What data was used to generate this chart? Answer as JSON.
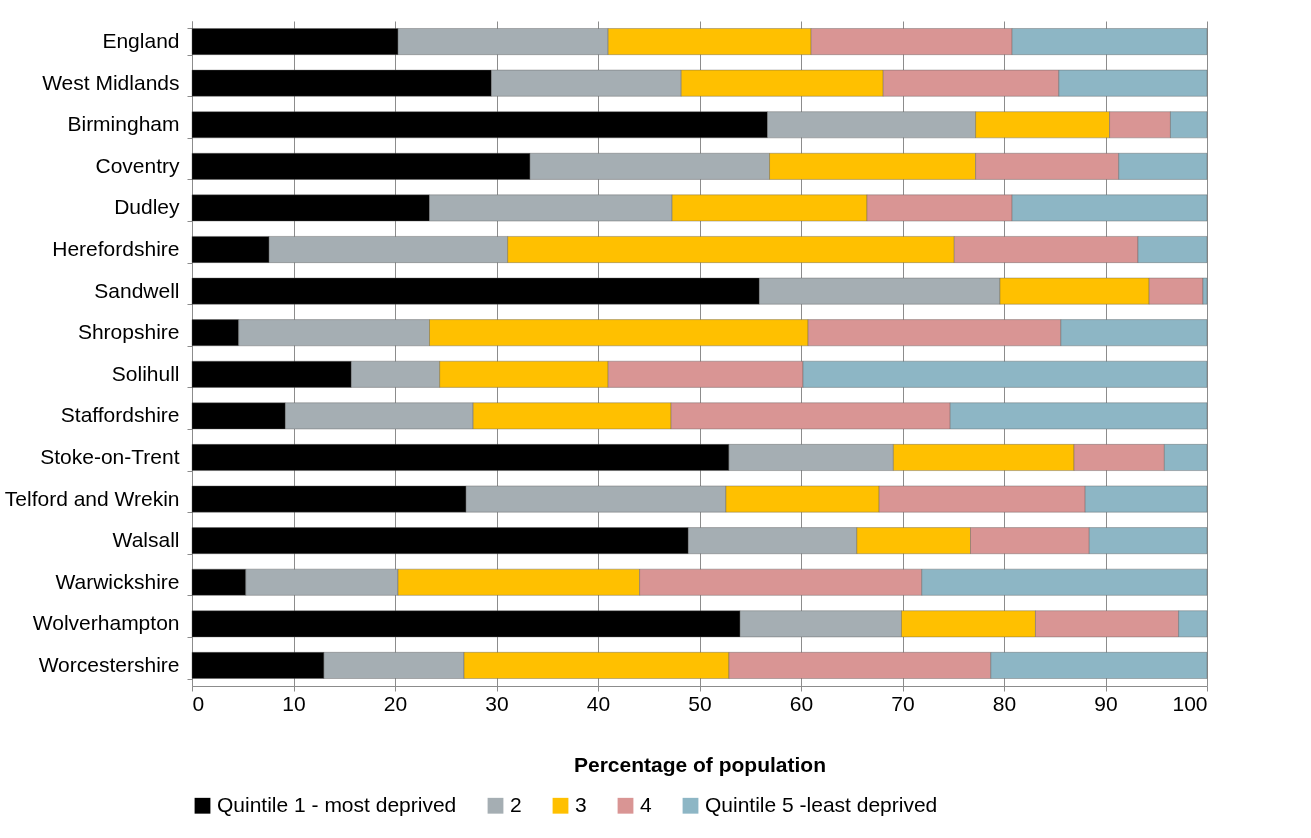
{
  "chart_data": {
    "type": "bar",
    "orientation": "horizontal",
    "stacked": true,
    "xlabel": "Percentage of population",
    "categories": [
      "England",
      "West Midlands",
      "Birmingham",
      "Coventry",
      "Dudley",
      "Herefordshire",
      "Sandwell",
      "Shropshire",
      "Solihull",
      "Staffordshire",
      "Stoke-on-Trent",
      "Telford and Wrekin",
      "Walsall",
      "Warwickshire",
      "Wolverhampton",
      "Worcestershire"
    ],
    "series": [
      {
        "name": "Quintile 1 - most deprived",
        "color": "#000000",
        "values": [
          20.3,
          29.5,
          56.7,
          33.3,
          23.4,
          7.6,
          55.9,
          4.6,
          15.7,
          9.2,
          52.9,
          27.0,
          48.9,
          5.3,
          54.0,
          13.0
        ]
      },
      {
        "name": "2",
        "color": "#a5aeb3",
        "values": [
          20.7,
          18.7,
          20.5,
          23.6,
          23.9,
          23.5,
          23.7,
          18.8,
          8.7,
          18.5,
          16.2,
          25.6,
          16.6,
          15.0,
          15.9,
          13.8
        ]
      },
      {
        "name": "3",
        "color": "#ffc000",
        "values": [
          20.0,
          19.9,
          13.2,
          20.3,
          19.2,
          44.0,
          14.7,
          37.3,
          16.6,
          19.5,
          17.8,
          15.1,
          11.2,
          23.8,
          13.2,
          26.1
        ]
      },
      {
        "name": "4",
        "color": "#d99594",
        "values": [
          19.8,
          17.3,
          6.0,
          14.1,
          14.3,
          18.1,
          5.3,
          24.9,
          19.2,
          27.5,
          8.9,
          20.3,
          11.7,
          27.8,
          14.1,
          25.8
        ]
      },
      {
        "name": "Quintile 5 -least deprived",
        "color": "#8db6c5",
        "values": [
          19.2,
          14.6,
          3.6,
          8.7,
          19.2,
          6.8,
          0.4,
          14.4,
          39.8,
          25.3,
          4.2,
          12.0,
          11.6,
          28.1,
          2.8,
          21.3
        ]
      }
    ],
    "xlim": [
      0,
      100
    ],
    "xticks": [
      0,
      10,
      20,
      30,
      40,
      50,
      60,
      70,
      80,
      90,
      100
    ],
    "grid": "x",
    "legend": "bottom"
  }
}
